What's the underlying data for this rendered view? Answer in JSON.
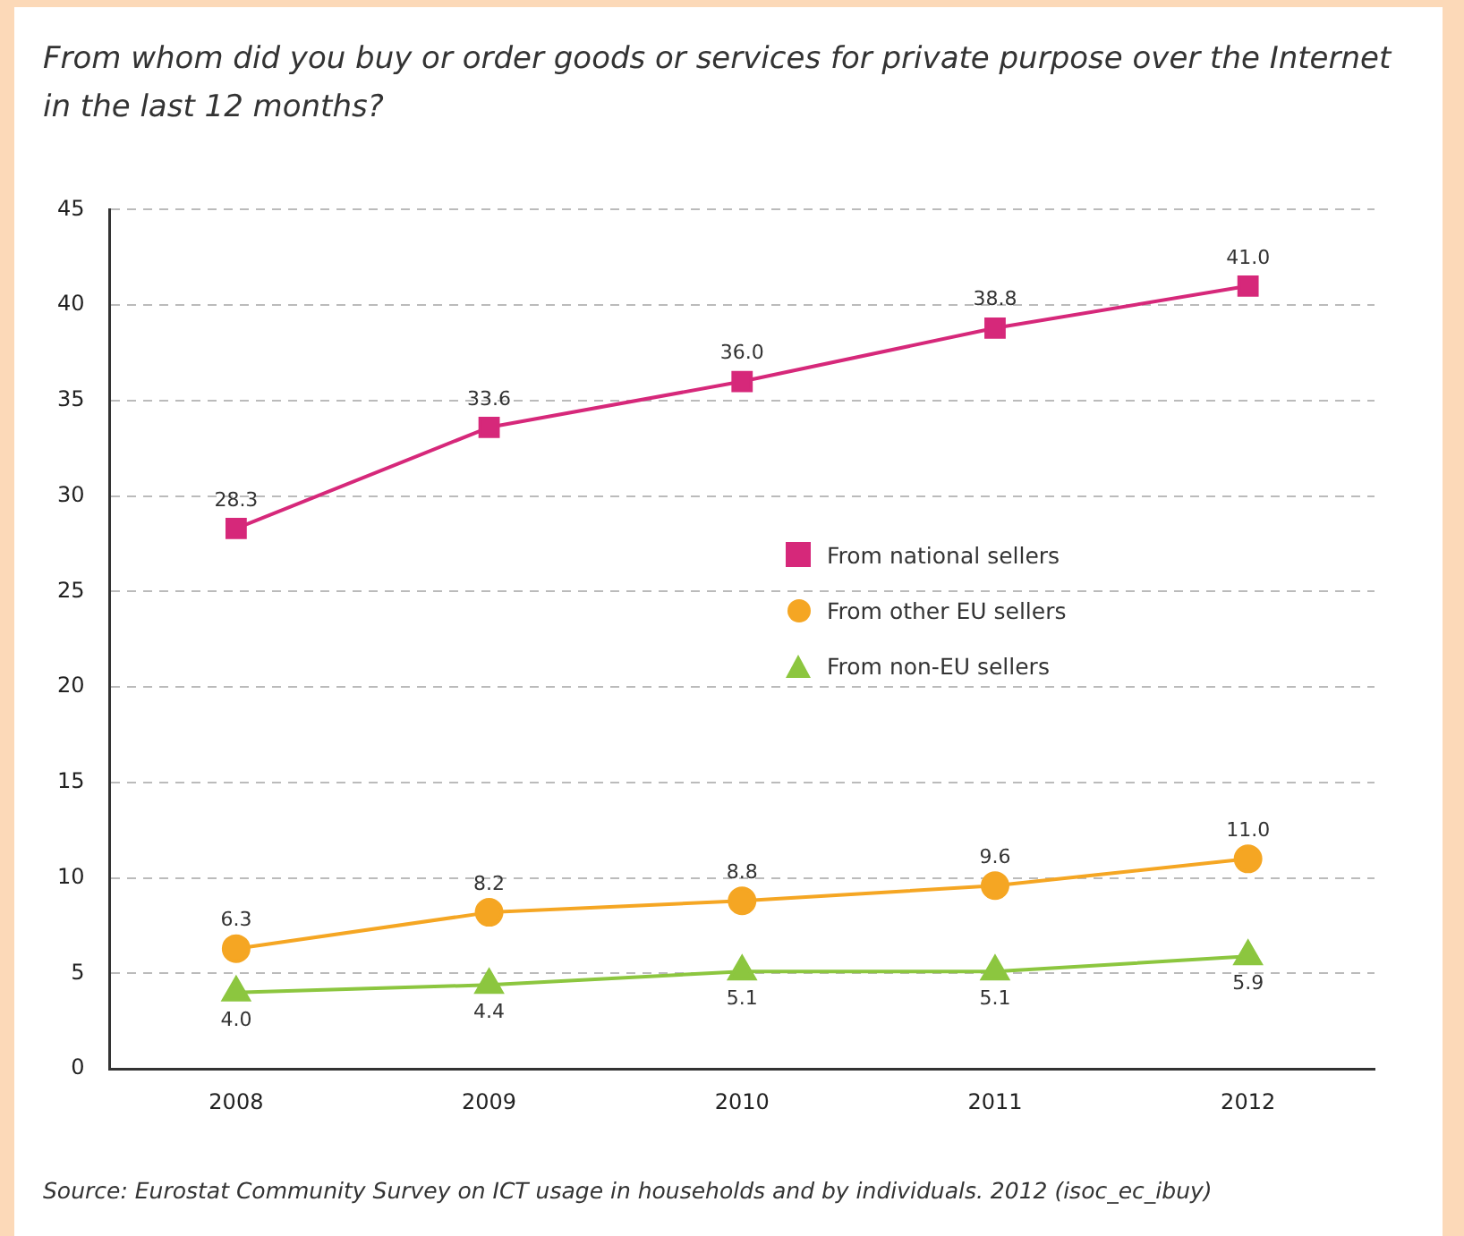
{
  "chart_data": {
    "type": "line",
    "title": "From whom did you buy or order goods or services for private purpose over the Internet in the last 12 months?",
    "categories": [
      "2008",
      "2009",
      "2010",
      "2011",
      "2012"
    ],
    "series": [
      {
        "name": "From national sellers",
        "color": "#d6287a",
        "marker": "square",
        "values": [
          28.3,
          33.6,
          36.0,
          38.8,
          41.0
        ],
        "value_labels": [
          "28.3",
          "33.6",
          "36.0",
          "38.8",
          "41.0"
        ]
      },
      {
        "name": "From other EU sellers",
        "color": "#f5a623",
        "marker": "circle",
        "values": [
          6.3,
          8.2,
          8.8,
          9.6,
          11.0
        ],
        "value_labels": [
          "6.3",
          "8.2",
          "8.8",
          "9.6",
          "11.0"
        ]
      },
      {
        "name": "From non-EU sellers",
        "color": "#8cc63f",
        "marker": "triangle",
        "values": [
          4.0,
          4.4,
          5.1,
          5.1,
          5.9
        ],
        "value_labels": [
          "4.0",
          "4.4",
          "5.1",
          "5.1",
          "5.9"
        ]
      }
    ],
    "ylim": [
      0,
      45
    ],
    "yticks": [
      0,
      5,
      10,
      15,
      20,
      25,
      30,
      35,
      40,
      45
    ],
    "grid": "y",
    "legend": "right",
    "line_style": "solid",
    "annotations": [
      "Source: Eurostat Community Survey on ICT usage in households and by individuals. 2012 (isoc_ec_ibuy)"
    ]
  }
}
